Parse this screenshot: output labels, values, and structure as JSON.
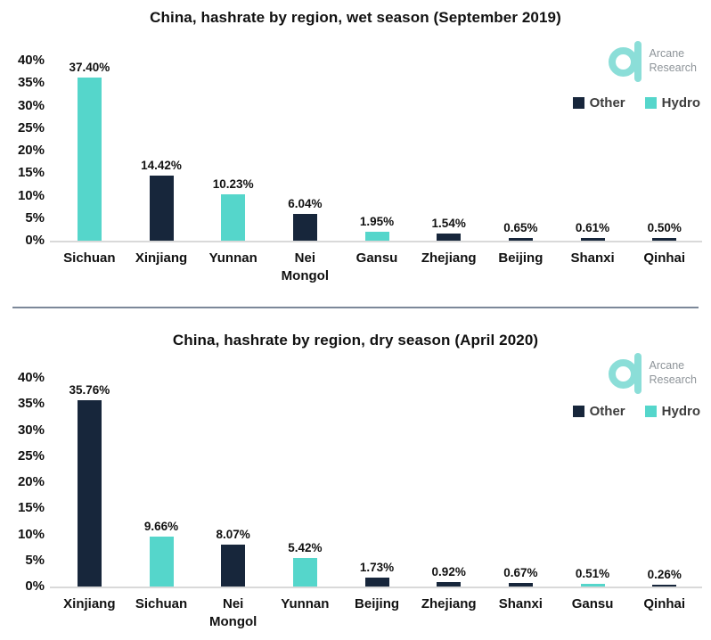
{
  "branding": {
    "line1": "Arcane",
    "line2": "Research"
  },
  "colors": {
    "other": "#17263B",
    "hydro": "#55D6CB",
    "logo_teal": "#8BDED8",
    "logo_text": "#8E9499",
    "divider": "#7C8899",
    "axis_line": "#D9D9D9",
    "text": "#111111",
    "legend_text": "#3D3D3D"
  },
  "chart_data": [
    {
      "type": "bar",
      "title": "China, hashrate by region, wet season (September 2019)",
      "categories": [
        "Sichuan",
        "Xinjiang",
        "Yunnan",
        "Nei Mongol",
        "Gansu",
        "Zhejiang",
        "Beijing",
        "Shanxi",
        "Qinhai"
      ],
      "values": [
        37.4,
        14.42,
        10.23,
        6.04,
        1.95,
        1.54,
        0.65,
        0.61,
        0.5
      ],
      "data_labels": [
        "37.40%",
        "14.42%",
        "10.23%",
        "6.04%",
        "1.95%",
        "1.54%",
        "0.65%",
        "0.61%",
        "0.50%"
      ],
      "bar_series": [
        "Hydro",
        "Other",
        "Hydro",
        "Other",
        "Hydro",
        "Other",
        "Other",
        "Other",
        "Other"
      ],
      "legend": [
        "Other",
        "Hydro"
      ],
      "legend_position": "top-right",
      "xlabel": "",
      "ylabel": "",
      "ylim": [
        0,
        40
      ],
      "yticks": [
        "40%",
        "35%",
        "30%",
        "25%",
        "20%",
        "15%",
        "10%",
        "5%",
        "0%"
      ],
      "grid": false
    },
    {
      "type": "bar",
      "title": "China, hashrate by region, dry season (April 2020)",
      "categories": [
        "Xinjiang",
        "Sichuan",
        "Nei Mongol",
        "Yunnan",
        "Beijing",
        "Zhejiang",
        "Shanxi",
        "Gansu",
        "Qinhai"
      ],
      "values": [
        35.76,
        9.66,
        8.07,
        5.42,
        1.73,
        0.92,
        0.67,
        0.51,
        0.26
      ],
      "data_labels": [
        "35.76%",
        "9.66%",
        "8.07%",
        "5.42%",
        "1.73%",
        "0.92%",
        "0.67%",
        "0.51%",
        "0.26%"
      ],
      "bar_series": [
        "Other",
        "Hydro",
        "Other",
        "Hydro",
        "Other",
        "Other",
        "Other",
        "Hydro",
        "Other"
      ],
      "legend": [
        "Other",
        "Hydro"
      ],
      "legend_position": "top-right",
      "xlabel": "",
      "ylabel": "",
      "ylim": [
        0,
        40
      ],
      "yticks": [
        "40%",
        "35%",
        "30%",
        "25%",
        "20%",
        "15%",
        "10%",
        "5%",
        "0%"
      ],
      "grid": false
    }
  ]
}
